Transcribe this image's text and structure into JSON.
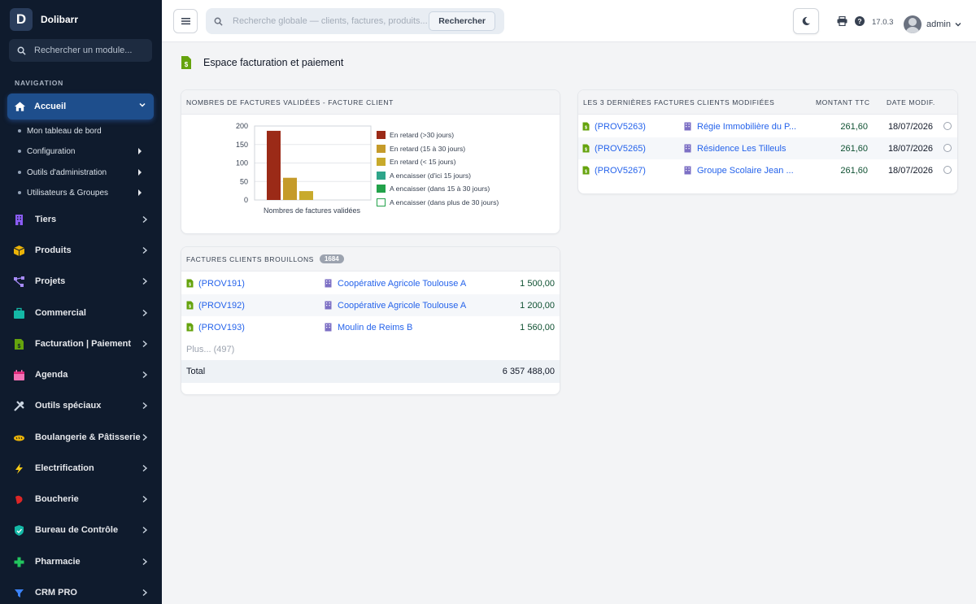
{
  "brand": {
    "name": "Dolibarr",
    "logo_letter": "D"
  },
  "sidebar": {
    "search_placeholder": "Rechercher un module...",
    "heading": "NAVIGATION",
    "active": {
      "label": "Accueil",
      "icon": "home-icon"
    },
    "subitems": [
      {
        "label": "Mon tableau de bord"
      },
      {
        "label": "Configuration"
      },
      {
        "label": "Outils d'administration"
      },
      {
        "label": "Utilisateurs & Groupes"
      }
    ],
    "items": [
      {
        "label": "Tiers",
        "icon": "building-icon",
        "color": "#8b5cf6"
      },
      {
        "label": "Produits",
        "icon": "cube-icon",
        "color": "#eab308"
      },
      {
        "label": "Projets",
        "icon": "project-icon",
        "color": "#a78bfa"
      },
      {
        "label": "Commercial",
        "icon": "briefcase-icon",
        "color": "#14b8a6"
      },
      {
        "label": "Facturation | Paiement",
        "icon": "invoice-icon",
        "color": "#65a30d"
      },
      {
        "label": "Agenda",
        "icon": "calendar-icon",
        "color": "#f472b6"
      },
      {
        "label": "Outils spéciaux",
        "icon": "tools-icon",
        "color": "#cbd5e1"
      },
      {
        "label": "Boulangerie & Pâtisserie",
        "icon": "bread-icon",
        "color": "#eab308"
      },
      {
        "label": "Electrification",
        "icon": "bolt-icon",
        "color": "#facc15"
      },
      {
        "label": "Boucherie",
        "icon": "meat-icon",
        "color": "#dc2626"
      },
      {
        "label": "Bureau de Contrôle",
        "icon": "shield-icon",
        "color": "#14b8a6"
      },
      {
        "label": "Pharmacie",
        "icon": "cross-icon",
        "color": "#22c55e"
      },
      {
        "label": "CRM PRO",
        "icon": "funnel-icon",
        "color": "#3b82f6"
      }
    ]
  },
  "topbar": {
    "search_placeholder": "Recherche globale — clients, factures, produits...",
    "search_button": "Rechercher",
    "version": "17.0.3",
    "user": "admin"
  },
  "page": {
    "title": "Espace facturation et paiement"
  },
  "chart_card": {
    "title": "NOMBRES DE FACTURES VALIDÉES - FACTURE CLIENT",
    "xlabel": "Nombres de factures validées",
    "yticks": [
      "200",
      "150",
      "100",
      "50",
      "0"
    ]
  },
  "chart_data": {
    "type": "bar",
    "categories": [
      "Nombres de factures validées"
    ],
    "xlabel": "Nombres de factures validées",
    "ylim": [
      0,
      200
    ],
    "yticks": [
      0,
      50,
      100,
      150,
      200
    ],
    "series": [
      {
        "name": "En retard (>30 jours)",
        "values": [
          187
        ],
        "color": "#9b2a17"
      },
      {
        "name": "En retard (15 à 30 jours)",
        "values": [
          60
        ],
        "color": "#c59b2a"
      },
      {
        "name": "En retard (< 15 jours)",
        "values": [
          24
        ],
        "color": "#c8aa2c"
      },
      {
        "name": "A encaisser (d'ici 15 jours)",
        "values": [
          0
        ],
        "color": "#2ea58a"
      },
      {
        "name": "A encaisser (dans 15 à 30 jours)",
        "values": [
          0
        ],
        "color": "#22a24a"
      },
      {
        "name": "A encaisser (dans plus de 30 jours)",
        "values": [
          0
        ],
        "color": "#ffffff"
      }
    ]
  },
  "drafts_card": {
    "title": "FACTURES CLIENTS BROUILLONS",
    "badge": "1684",
    "rows": [
      {
        "ref": "(PROV191)",
        "client": "Coopérative Agricole Toulouse A",
        "amount": "1 500,00"
      },
      {
        "ref": "(PROV192)",
        "client": "Coopérative Agricole Toulouse A",
        "amount": "1 200,00"
      },
      {
        "ref": "(PROV193)",
        "client": "Moulin de Reims B",
        "amount": "1 560,00"
      }
    ],
    "more": "Plus... (497)",
    "total_label": "Total",
    "total_value": "6 357 488,00"
  },
  "recent_card": {
    "title": "LES 3 DERNIÈRES FACTURES CLIENTS MODIFIÉES",
    "col_amount": "MONTANT TTC",
    "col_date": "DATE MODIF.",
    "rows": [
      {
        "ref": "(PROV5263)",
        "client": "Régie Immobilière du P...",
        "amount": "261,60",
        "date": "18/07/2026"
      },
      {
        "ref": "(PROV5265)",
        "client": "Résidence Les Tilleuls",
        "amount": "261,60",
        "date": "18/07/2026"
      },
      {
        "ref": "(PROV5267)",
        "client": "Groupe Scolaire Jean ...",
        "amount": "261,60",
        "date": "18/07/2026"
      }
    ]
  }
}
